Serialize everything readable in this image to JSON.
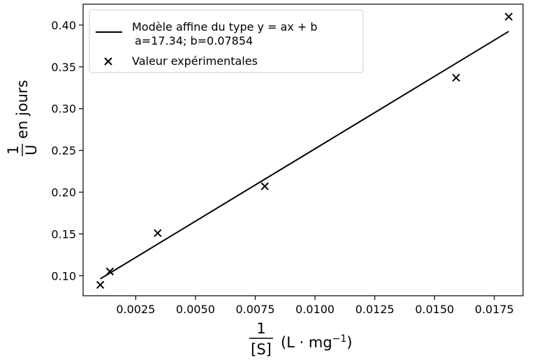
{
  "chart_data": {
    "type": "scatter",
    "title": "",
    "xlabel": {
      "numerator": "1",
      "denominator": "[S]",
      "unit_open": "(L · mg",
      "unit_exponent": "−1",
      "unit_close": ")"
    },
    "ylabel": {
      "numerator": "1",
      "denominator": "U",
      "suffix": "en jours"
    },
    "xlim": [
      0.0003,
      0.0187
    ],
    "ylim": [
      0.076,
      0.425
    ],
    "x_ticks": [
      0.0025,
      0.005,
      0.0075,
      0.01,
      0.0125,
      0.015,
      0.0175
    ],
    "x_tick_labels": [
      "0.0025",
      "0.0050",
      "0.0075",
      "0.0100",
      "0.0125",
      "0.0150",
      "0.0175"
    ],
    "y_ticks": [
      0.1,
      0.15,
      0.2,
      0.25,
      0.3,
      0.35,
      0.4
    ],
    "y_tick_labels": [
      "0.10",
      "0.15",
      "0.20",
      "0.25",
      "0.30",
      "0.35",
      "0.40"
    ],
    "grid": false,
    "legend_position": "upper-left",
    "series": [
      {
        "name": "Modèle affine du type y = ax + b",
        "name_line2": "a=17.34; b=0.07854",
        "kind": "line",
        "color": "#000000",
        "x": [
          0.00102,
          0.0181
        ],
        "y": [
          0.0962,
          0.3924
        ]
      },
      {
        "name": "Valeur expérimentales",
        "kind": "scatter",
        "marker": "x",
        "color": "#000000",
        "x": [
          0.00102,
          0.00142,
          0.00342,
          0.0079,
          0.0159,
          0.0181
        ],
        "y": [
          0.089,
          0.105,
          0.151,
          0.207,
          0.337,
          0.41
        ]
      }
    ]
  }
}
